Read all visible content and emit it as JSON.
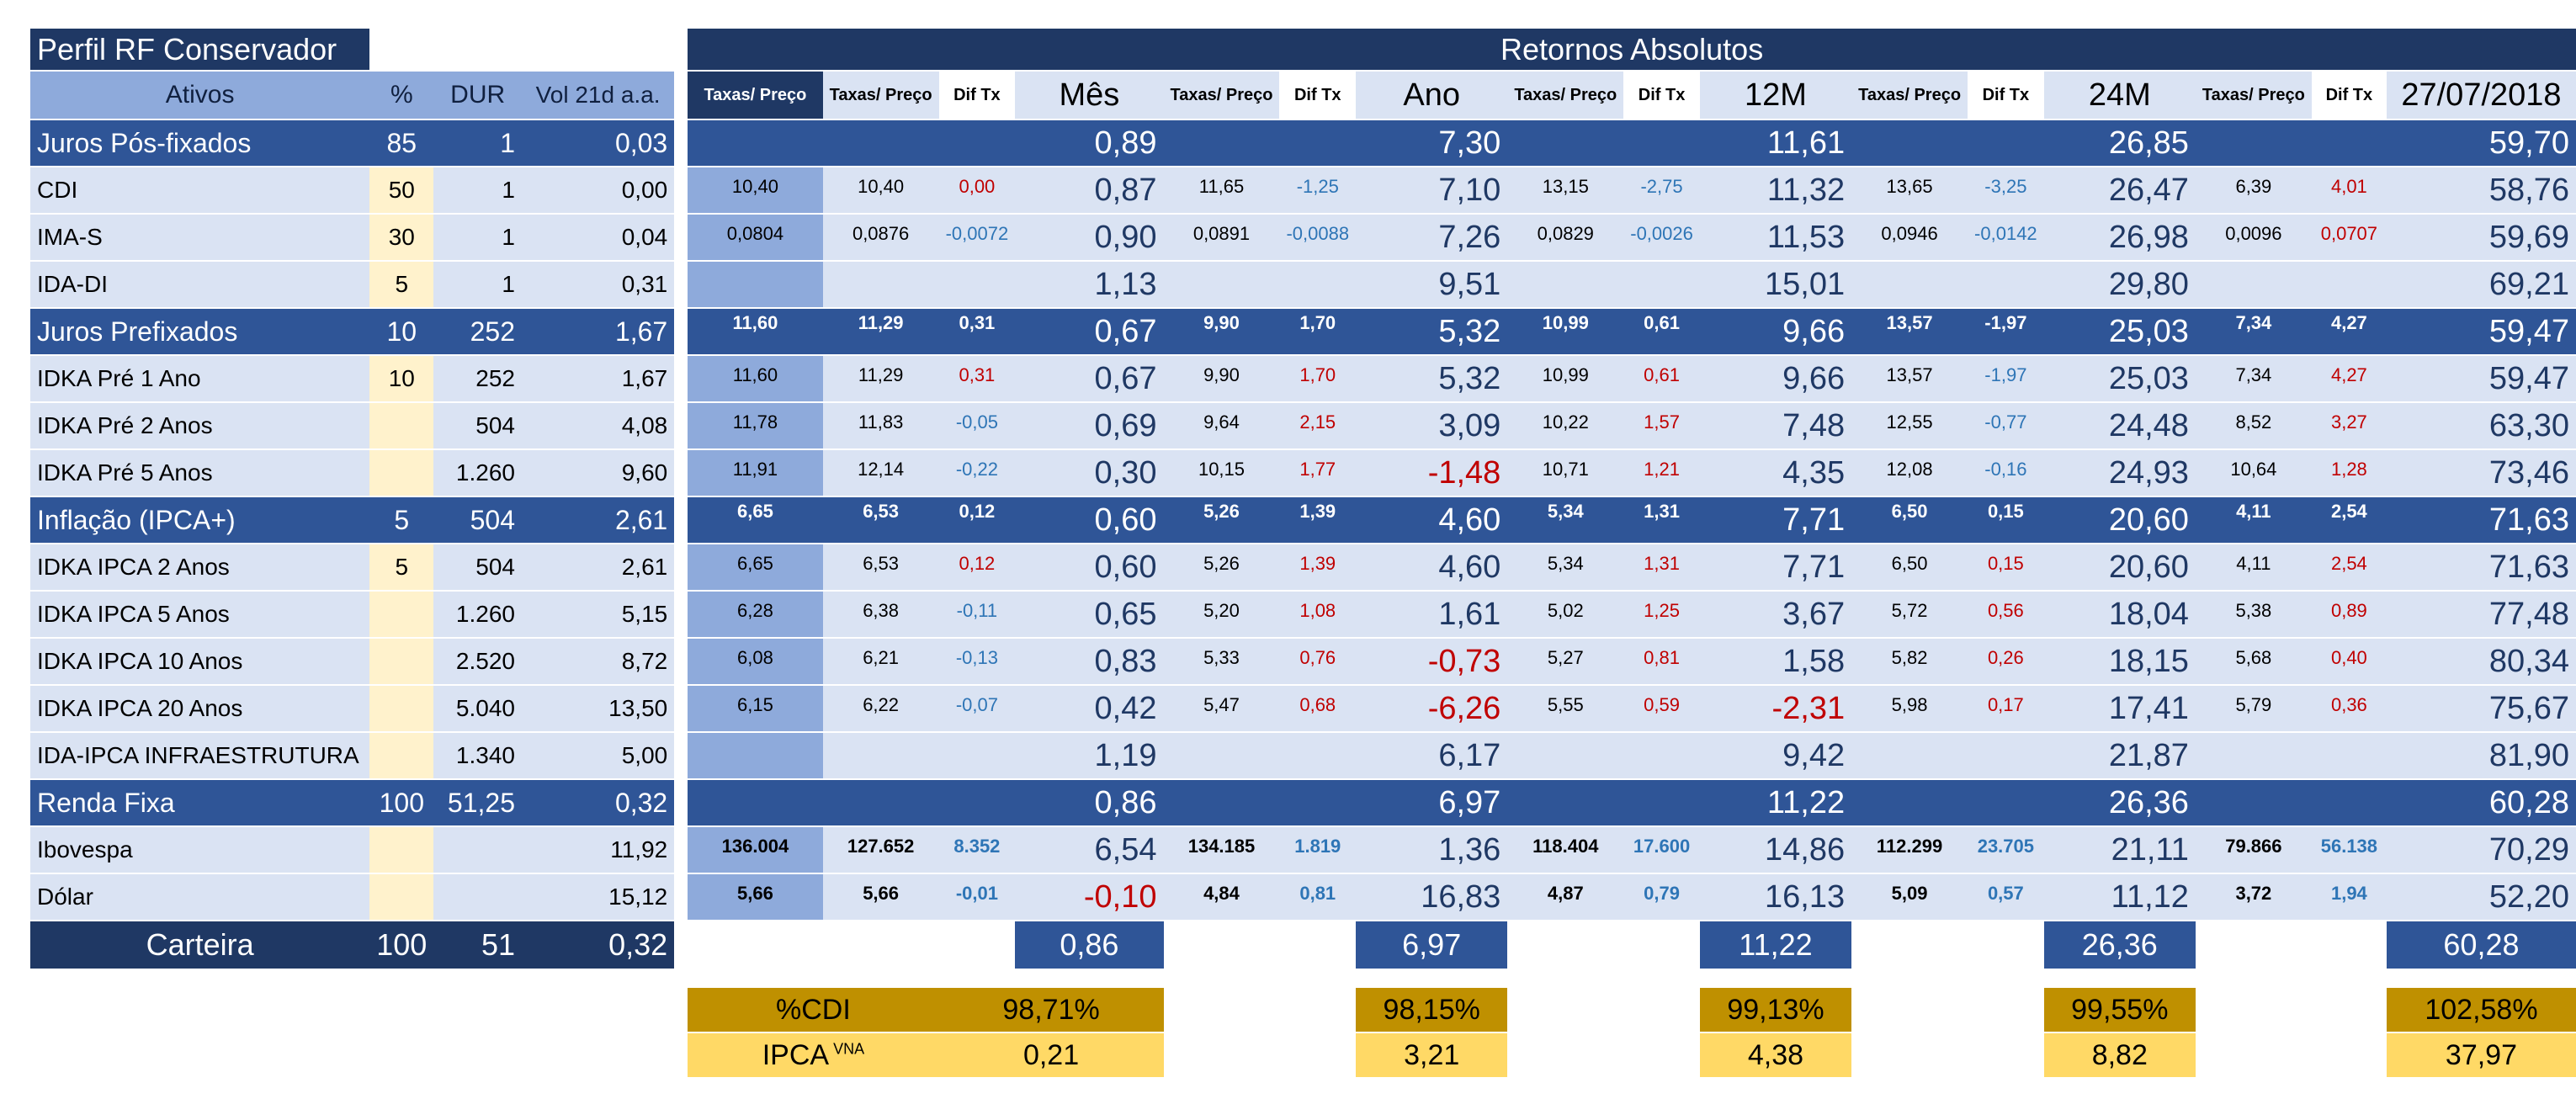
{
  "left_header": {
    "title": "Perfil RF Conservador",
    "ativos": "Ativos",
    "pct": "%",
    "dur": "DUR",
    "vol": "Vol 21d a.a."
  },
  "right_header": {
    "title": "Retornos Absolutos",
    "taxas_preco": "Taxas/ Preço",
    "dif_tx": "Dif Tx",
    "periods": [
      "Mês",
      "Ano",
      "12M",
      "24M",
      "27/07/2018"
    ]
  },
  "rows": [
    {
      "type": "sec",
      "name": "Juros Pós-fixados",
      "pct": "85",
      "dur": "1",
      "vol": "0,03",
      "tax0": "",
      "g": [
        [
          "",
          "",
          "0,89"
        ],
        [
          "",
          "",
          "7,30"
        ],
        [
          "",
          "",
          "11,61"
        ],
        [
          "",
          "",
          "26,85"
        ],
        [
          "",
          "",
          "59,70"
        ]
      ]
    },
    {
      "type": "row",
      "name": "CDI",
      "pct": "50",
      "dur": "1",
      "vol": "0,00",
      "tax0": "10,40",
      "g": [
        [
          "10,40",
          "0,00",
          "0,87"
        ],
        [
          "11,65",
          "-1,25",
          "7,10"
        ],
        [
          "13,15",
          "-2,75",
          "11,32"
        ],
        [
          "13,65",
          "-3,25",
          "26,47"
        ],
        [
          "6,39",
          "4,01",
          "58,76"
        ]
      ]
    },
    {
      "type": "row",
      "name": "IMA-S",
      "pct": "30",
      "dur": "1",
      "vol": "0,04",
      "tax0": "0,0804",
      "g": [
        [
          "0,0876",
          "-0,0072",
          "0,90"
        ],
        [
          "0,0891",
          "-0,0088",
          "7,26"
        ],
        [
          "0,0829",
          "-0,0026",
          "11,53"
        ],
        [
          "0,0946",
          "-0,0142",
          "26,98"
        ],
        [
          "0,0096",
          "0,0707",
          "59,69"
        ]
      ]
    },
    {
      "type": "row",
      "name": "IDA-DI",
      "pct": "5",
      "dur": "1",
      "vol": "0,31",
      "tax0": "",
      "g": [
        [
          "",
          "",
          "1,13"
        ],
        [
          "",
          "",
          "9,51"
        ],
        [
          "",
          "",
          "15,01"
        ],
        [
          "",
          "",
          "29,80"
        ],
        [
          "",
          "",
          "69,21"
        ]
      ]
    },
    {
      "type": "sec",
      "name": "Juros Prefixados",
      "pct": "10",
      "dur": "252",
      "vol": "1,67",
      "tax0": "11,60",
      "g": [
        [
          "11,29",
          "0,31",
          "0,67"
        ],
        [
          "9,90",
          "1,70",
          "5,32"
        ],
        [
          "10,99",
          "0,61",
          "9,66"
        ],
        [
          "13,57",
          "-1,97",
          "25,03"
        ],
        [
          "7,34",
          "4,27",
          "59,47"
        ]
      ]
    },
    {
      "type": "row",
      "name": "IDKA Pré 1 Ano",
      "pct": "10",
      "dur": "252",
      "vol": "1,67",
      "tax0": "11,60",
      "g": [
        [
          "11,29",
          "0,31",
          "0,67"
        ],
        [
          "9,90",
          "1,70",
          "5,32"
        ],
        [
          "10,99",
          "0,61",
          "9,66"
        ],
        [
          "13,57",
          "-1,97",
          "25,03"
        ],
        [
          "7,34",
          "4,27",
          "59,47"
        ]
      ]
    },
    {
      "type": "row",
      "name": "IDKA Pré 2 Anos",
      "pct": "",
      "dur": "504",
      "vol": "4,08",
      "tax0": "11,78",
      "g": [
        [
          "11,83",
          "-0,05",
          "0,69"
        ],
        [
          "9,64",
          "2,15",
          "3,09"
        ],
        [
          "10,22",
          "1,57",
          "7,48"
        ],
        [
          "12,55",
          "-0,77",
          "24,48"
        ],
        [
          "8,52",
          "3,27",
          "63,30"
        ]
      ]
    },
    {
      "type": "row",
      "name": "IDKA Pré 5 Anos",
      "pct": "",
      "dur": "1.260",
      "vol": "9,60",
      "tax0": "11,91",
      "g": [
        [
          "12,14",
          "-0,22",
          "0,30"
        ],
        [
          "10,15",
          "1,77",
          "-1,48"
        ],
        [
          "10,71",
          "1,21",
          "4,35"
        ],
        [
          "12,08",
          "-0,16",
          "24,93"
        ],
        [
          "10,64",
          "1,28",
          "73,46"
        ]
      ]
    },
    {
      "type": "sec",
      "name": "Inflação (IPCA+)",
      "pct": "5",
      "dur": "504",
      "vol": "2,61",
      "tax0": "6,65",
      "g": [
        [
          "6,53",
          "0,12",
          "0,60"
        ],
        [
          "5,26",
          "1,39",
          "4,60"
        ],
        [
          "5,34",
          "1,31",
          "7,71"
        ],
        [
          "6,50",
          "0,15",
          "20,60"
        ],
        [
          "4,11",
          "2,54",
          "71,63"
        ]
      ]
    },
    {
      "type": "row",
      "name": "IDKA IPCA 2 Anos",
      "pct": "5",
      "dur": "504",
      "vol": "2,61",
      "tax0": "6,65",
      "g": [
        [
          "6,53",
          "0,12",
          "0,60"
        ],
        [
          "5,26",
          "1,39",
          "4,60"
        ],
        [
          "5,34",
          "1,31",
          "7,71"
        ],
        [
          "6,50",
          "0,15",
          "20,60"
        ],
        [
          "4,11",
          "2,54",
          "71,63"
        ]
      ]
    },
    {
      "type": "row",
      "name": "IDKA IPCA 5 Anos",
      "pct": "",
      "dur": "1.260",
      "vol": "5,15",
      "tax0": "6,28",
      "g": [
        [
          "6,38",
          "-0,11",
          "0,65"
        ],
        [
          "5,20",
          "1,08",
          "1,61"
        ],
        [
          "5,02",
          "1,25",
          "3,67"
        ],
        [
          "5,72",
          "0,56",
          "18,04"
        ],
        [
          "5,38",
          "0,89",
          "77,48"
        ]
      ]
    },
    {
      "type": "row",
      "name": "IDKA IPCA 10 Anos",
      "pct": "",
      "dur": "2.520",
      "vol": "8,72",
      "tax0": "6,08",
      "g": [
        [
          "6,21",
          "-0,13",
          "0,83"
        ],
        [
          "5,33",
          "0,76",
          "-0,73"
        ],
        [
          "5,27",
          "0,81",
          "1,58"
        ],
        [
          "5,82",
          "0,26",
          "18,15"
        ],
        [
          "5,68",
          "0,40",
          "80,34"
        ]
      ]
    },
    {
      "type": "row",
      "name": "IDKA IPCA 20 Anos",
      "pct": "",
      "dur": "5.040",
      "vol": "13,50",
      "tax0": "6,15",
      "g": [
        [
          "6,22",
          "-0,07",
          "0,42"
        ],
        [
          "5,47",
          "0,68",
          "-6,26"
        ],
        [
          "5,55",
          "0,59",
          "-2,31"
        ],
        [
          "5,98",
          "0,17",
          "17,41"
        ],
        [
          "5,79",
          "0,36",
          "75,67"
        ]
      ]
    },
    {
      "type": "row",
      "name": "IDA-IPCA INFRAESTRUTURA",
      "pct": "",
      "dur": "1.340",
      "vol": "5,00",
      "tax0": "",
      "g": [
        [
          "",
          "",
          "1,19"
        ],
        [
          "",
          "",
          "6,17"
        ],
        [
          "",
          "",
          "9,42"
        ],
        [
          "",
          "",
          "21,87"
        ],
        [
          "",
          "",
          "81,90"
        ]
      ]
    },
    {
      "type": "sec",
      "name": "Renda Fixa",
      "pct": "100",
      "dur": "51,25",
      "vol": "0,32",
      "tax0": "",
      "g": [
        [
          "",
          "",
          "0,86"
        ],
        [
          "",
          "",
          "6,97"
        ],
        [
          "",
          "",
          "11,22"
        ],
        [
          "",
          "",
          "26,36"
        ],
        [
          "",
          "",
          "60,28"
        ]
      ]
    },
    {
      "type": "mkt",
      "name": "Ibovespa",
      "pct": "",
      "dur": "",
      "vol": "11,92",
      "tax0": "136.004",
      "g": [
        [
          "127.652",
          "8.352",
          "6,54"
        ],
        [
          "134.185",
          "1.819",
          "1,36"
        ],
        [
          "118.404",
          "17.600",
          "14,86"
        ],
        [
          "112.299",
          "23.705",
          "21,11"
        ],
        [
          "79.866",
          "56.138",
          "70,29"
        ]
      ]
    },
    {
      "type": "mkt",
      "name": "Dólar",
      "pct": "",
      "dur": "",
      "vol": "15,12",
      "tax0": "5,66",
      "g": [
        [
          "5,66",
          "-0,01",
          "-0,10"
        ],
        [
          "4,84",
          "0,81",
          "16,83"
        ],
        [
          "4,87",
          "0,79",
          "16,13"
        ],
        [
          "5,09",
          "0,57",
          "11,12"
        ],
        [
          "3,72",
          "1,94",
          "52,20"
        ]
      ]
    }
  ],
  "carteira": {
    "label": "Carteira",
    "pct": "100",
    "dur": "51",
    "vol": "0,32",
    "values": [
      "0,86",
      "6,97",
      "11,22",
      "26,36",
      "60,28"
    ]
  },
  "cdi": {
    "label": "%CDI",
    "values": [
      "98,71%",
      "98,15%",
      "99,13%",
      "99,55%",
      "102,58%"
    ]
  },
  "ipca": {
    "label": "IPCA",
    "sup": "VNA",
    "values": [
      "0,21",
      "3,21",
      "4,38",
      "8,82",
      "37,97"
    ]
  }
}
